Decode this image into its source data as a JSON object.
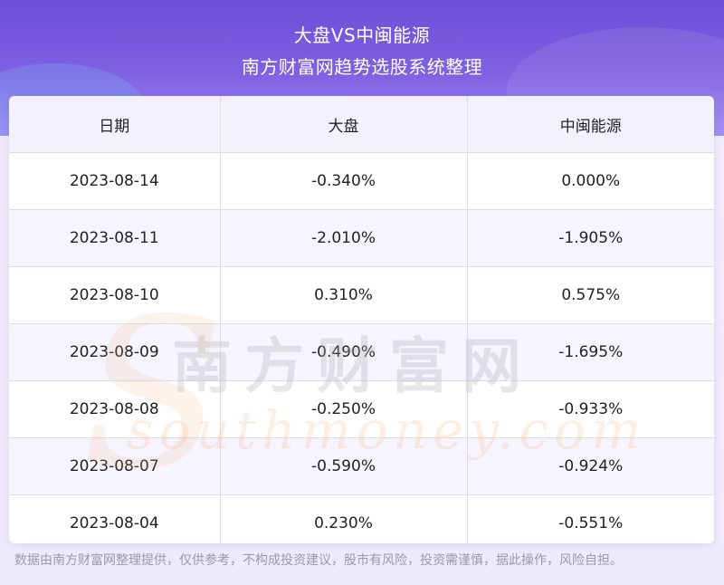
{
  "header": {
    "title": "大盘VS中闽能源",
    "subtitle": "南方财富网趋势选股系统整理"
  },
  "table": {
    "columns": [
      "日期",
      "大盘",
      "中闽能源"
    ],
    "rows": [
      [
        "2023-08-14",
        "-0.340%",
        "0.000%"
      ],
      [
        "2023-08-11",
        "-2.010%",
        "-1.905%"
      ],
      [
        "2023-08-10",
        "0.310%",
        "0.575%"
      ],
      [
        "2023-08-09",
        "-0.490%",
        "-1.695%"
      ],
      [
        "2023-08-08",
        "-0.250%",
        "-0.933%"
      ],
      [
        "2023-08-07",
        "-0.590%",
        "-0.924%"
      ],
      [
        "2023-08-04",
        "0.230%",
        "-0.551%"
      ]
    ]
  },
  "watermark": {
    "cn": "南方财富网",
    "en": "southmoney.com"
  },
  "footer": {
    "disclaimer": "数据由南方财富网整理提供，仅供参考，不构成投资建议，股市有风险，投资需谨慎，据此操作，风险自担。"
  },
  "colors": {
    "header_top": "#6b4fd6",
    "header_bottom": "#9c86ee",
    "watermark_orange": "#f6b27a",
    "watermark_gray": "#c8c8c8"
  }
}
